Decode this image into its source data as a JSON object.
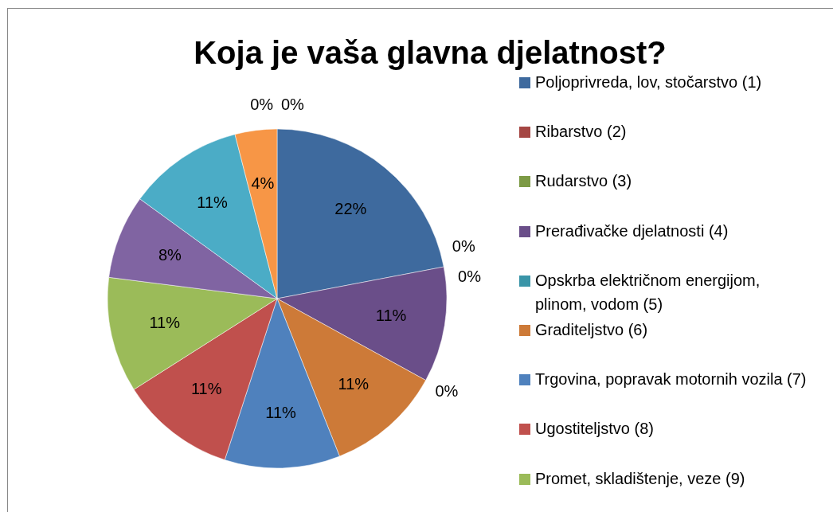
{
  "chart_data": {
    "type": "pie",
    "title": "Koja je vaša glavna djelatnost?",
    "categories": [
      "Poljoprivreda, lov, stočarstvo (1)",
      "Ribarstvo (2)",
      "Rudarstvo (3)",
      "Prerađivačke djelatnosti (4)",
      "Opskrba električnom energijom, plinom, vodom (5)",
      "Graditeljstvo (6)",
      "Trgovina, popravak motornih vozila (7)",
      "Ugostiteljstvo (8)",
      "Promet, skladištenje, veze (9)",
      null,
      null,
      null,
      null,
      null
    ],
    "values": [
      22,
      0,
      0,
      11,
      0,
      11,
      11,
      11,
      11,
      8,
      11,
      4,
      0,
      0
    ],
    "colors": [
      "#3e6a9e",
      "#a54643",
      "#7c9a45",
      "#6a4e89",
      "#3a95a8",
      "#cd7a38",
      "#4f81bd",
      "#c0504d",
      "#9bbb59",
      "#8064a2",
      "#4bacc6",
      "#f79646",
      "#2c4d75",
      "#772c2a"
    ],
    "value_labels": [
      "22%",
      "0%",
      "0%",
      "11%",
      "0%",
      "11%",
      "11%",
      "11%",
      "11%",
      "8%",
      "11%",
      "4%",
      "0%",
      "0%"
    ],
    "legend": "right"
  }
}
